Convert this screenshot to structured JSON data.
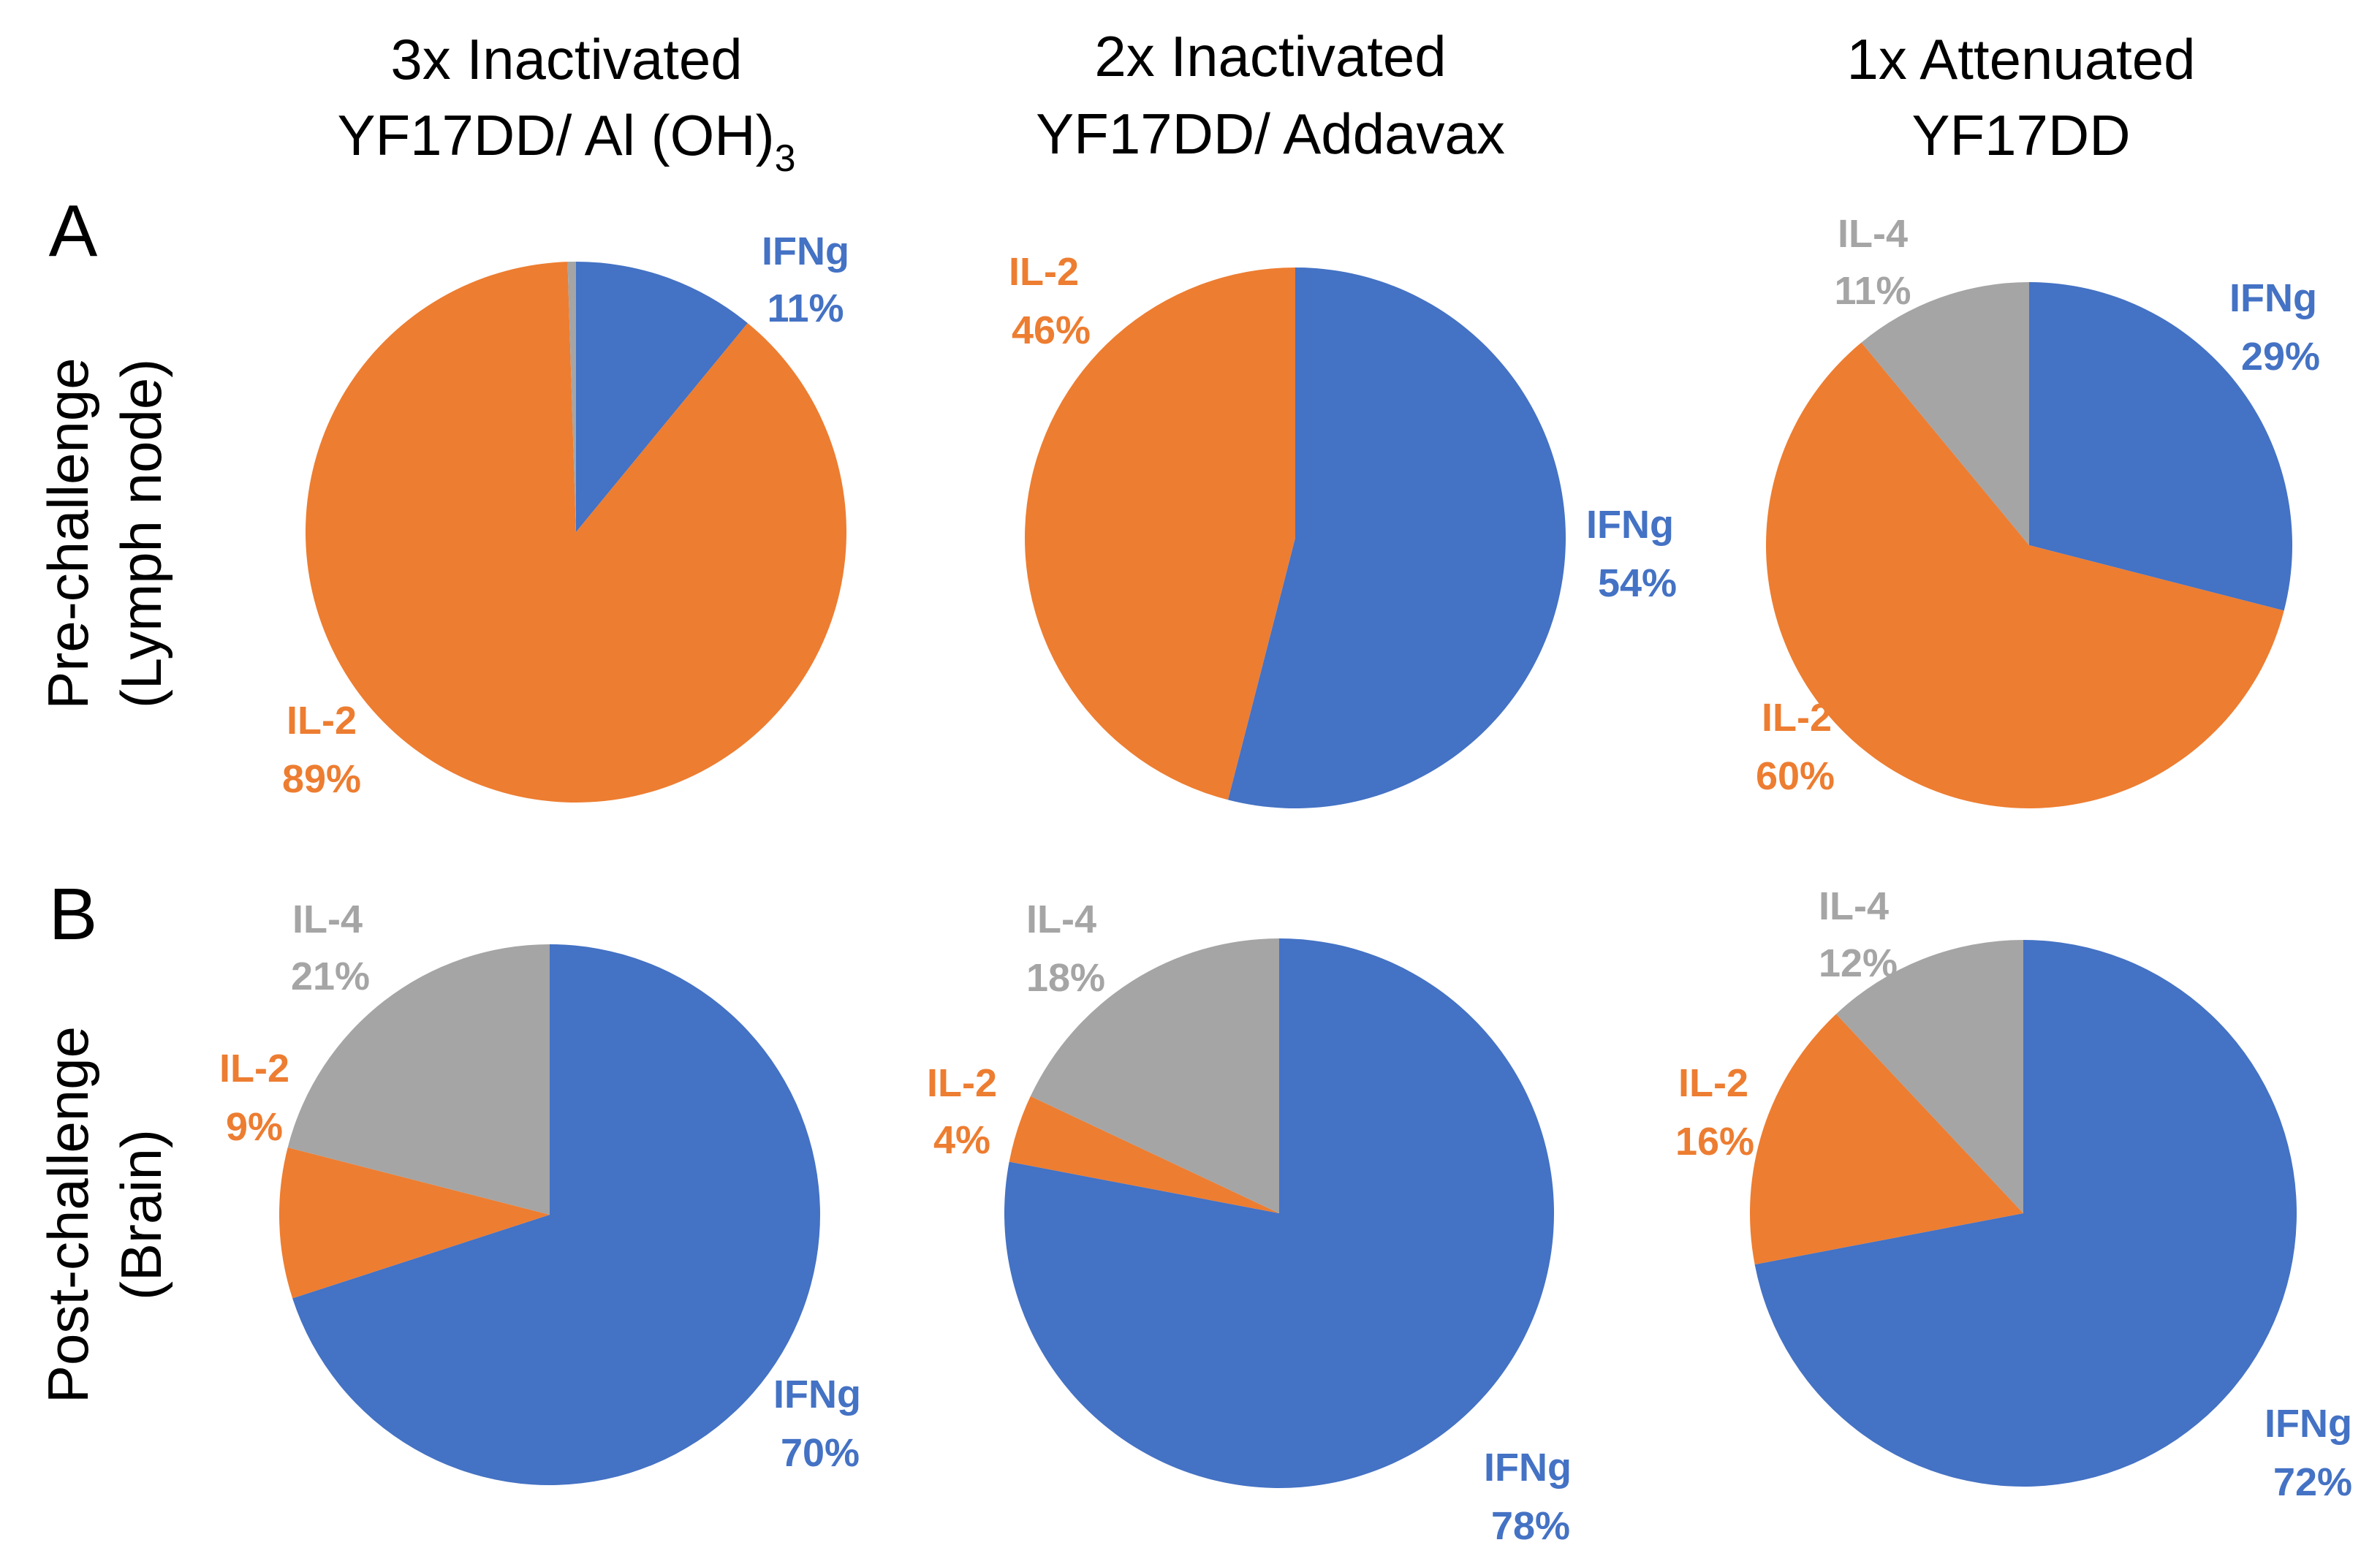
{
  "colors": {
    "IFNg": "#4472C4",
    "IL-2": "#ED7D31",
    "IL-4": "#A5A5A5"
  },
  "columns": [
    {
      "line1": "3x Inactivated",
      "line2": "YF17DD/ Al (OH)",
      "line2_sub": "3"
    },
    {
      "line1": "2x Inactivated",
      "line2": "YF17DD/ Addavax",
      "line2_sub": ""
    },
    {
      "line1": "1x Attenuated",
      "line2": "YF17DD",
      "line2_sub": ""
    }
  ],
  "rows": [
    {
      "letter": "A",
      "line1": "Pre-challenge",
      "line2": "(Lymph node)"
    },
    {
      "letter": "B",
      "line1": "Post-challenge",
      "line2": "(Brain)"
    }
  ],
  "chart_data": [
    {
      "type": "pie",
      "panel": "A",
      "row": "Pre-challenge (Lymph node)",
      "column": "3x Inactivated YF17DD/ Al (OH)3",
      "slices": [
        {
          "name": "IFNg",
          "value": 11,
          "label": "11%"
        },
        {
          "name": "IL-2",
          "value": 89,
          "label": "89%"
        },
        {
          "name": "IL-4",
          "value": 0.5,
          "label": ""
        }
      ]
    },
    {
      "type": "pie",
      "panel": "A",
      "row": "Pre-challenge (Lymph node)",
      "column": "2x Inactivated YF17DD/ Addavax",
      "slices": [
        {
          "name": "IFNg",
          "value": 54,
          "label": "54%"
        },
        {
          "name": "IL-2",
          "value": 46,
          "label": "46%"
        }
      ]
    },
    {
      "type": "pie",
      "panel": "A",
      "row": "Pre-challenge (Lymph node)",
      "column": "1x Attenuated YF17DD",
      "slices": [
        {
          "name": "IFNg",
          "value": 29,
          "label": "29%"
        },
        {
          "name": "IL-2",
          "value": 60,
          "label": "60%"
        },
        {
          "name": "IL-4",
          "value": 11,
          "label": "11%"
        }
      ]
    },
    {
      "type": "pie",
      "panel": "B",
      "row": "Post-challenge (Brain)",
      "column": "3x Inactivated YF17DD/ Al (OH)3",
      "slices": [
        {
          "name": "IFNg",
          "value": 70,
          "label": "70%"
        },
        {
          "name": "IL-2",
          "value": 9,
          "label": "9%"
        },
        {
          "name": "IL-4",
          "value": 21,
          "label": "21%"
        }
      ]
    },
    {
      "type": "pie",
      "panel": "B",
      "row": "Post-challenge (Brain)",
      "column": "2x Inactivated YF17DD/ Addavax",
      "slices": [
        {
          "name": "IFNg",
          "value": 78,
          "label": "78%"
        },
        {
          "name": "IL-2",
          "value": 4,
          "label": "4%"
        },
        {
          "name": "IL-4",
          "value": 18,
          "label": "18%"
        }
      ]
    },
    {
      "type": "pie",
      "panel": "B",
      "row": "Post-challenge (Brain)",
      "column": "1x Attenuated YF17DD",
      "slices": [
        {
          "name": "IFNg",
          "value": 72,
          "label": "72%"
        },
        {
          "name": "IL-2",
          "value": 16,
          "label": "16%"
        },
        {
          "name": "IL-4",
          "value": 12,
          "label": "12%"
        }
      ]
    }
  ]
}
